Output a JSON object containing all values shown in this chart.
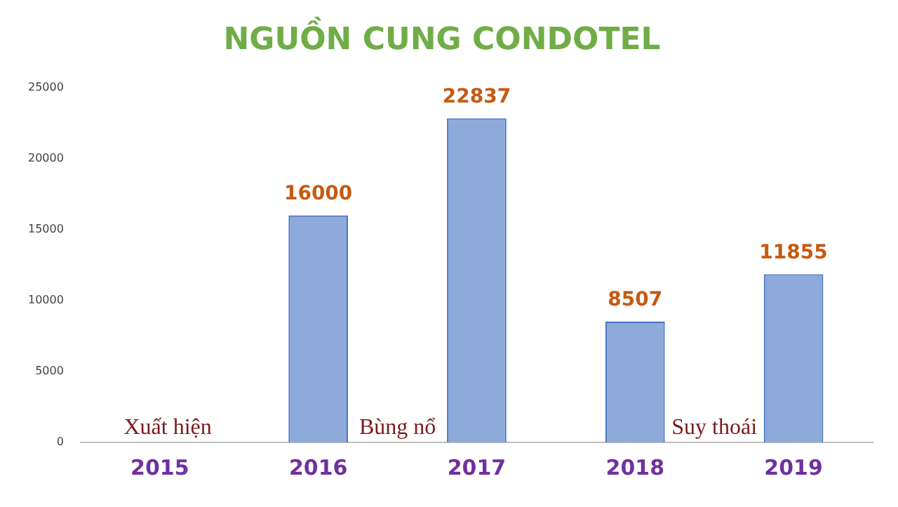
{
  "chart_data": {
    "type": "bar",
    "title": "NGUỒN CUNG CONDOTEL",
    "categories": [
      "2015",
      "2016",
      "2017",
      "2018",
      "2019"
    ],
    "values": [
      null,
      16000,
      22837,
      8507,
      11855
    ],
    "color": "#8eaadb",
    "ylim": [
      0,
      25000
    ],
    "yticks": [
      0,
      5000,
      10000,
      15000,
      20000,
      25000
    ],
    "grid": false,
    "legend": false,
    "data_labels": true,
    "annotations": [
      "Xuất hiện",
      "Bùng nổ",
      "Suy thoái"
    ]
  }
}
